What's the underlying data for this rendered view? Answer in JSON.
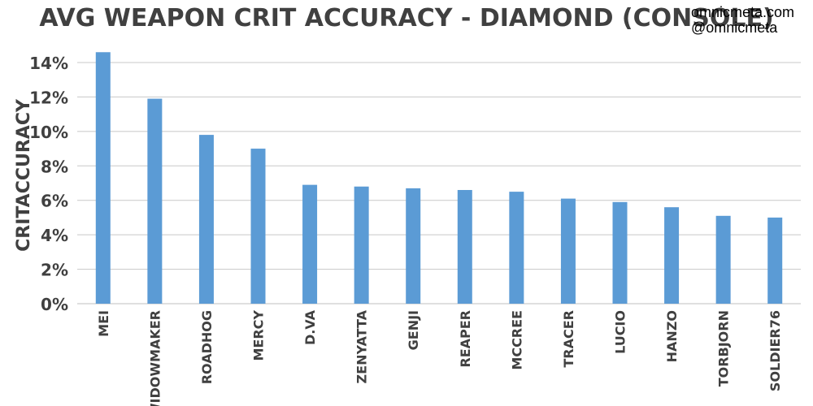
{
  "credits": {
    "site": "omnicmeta.com",
    "handle": "@omnicmeta"
  },
  "colors": {
    "bar": "#5b9bd5",
    "text": "#404040",
    "grid": "#c8c8c8"
  },
  "chart_data": {
    "type": "bar",
    "title": "AVG WEAPON CRIT ACCURACY - DIAMOND (CONSOLE)",
    "xlabel": "",
    "ylabel": "CRITACCURACY",
    "ylim": [
      0,
      14
    ],
    "yticks": [
      "0%",
      "2%",
      "4%",
      "6%",
      "8%",
      "10%",
      "12%",
      "14%"
    ],
    "grid": true,
    "legend": "none",
    "categories": [
      "MEI",
      "WIDOWMAKER",
      "ROADHOG",
      "MERCY",
      "D.VA",
      "ZENYATTA",
      "GENJI",
      "REAPER",
      "MCCREE",
      "TRACER",
      "LUCIO",
      "HANZO",
      "TORBJORN",
      "SOLDIER76"
    ],
    "values": [
      14.6,
      11.9,
      9.8,
      9.0,
      6.9,
      6.8,
      6.7,
      6.6,
      6.5,
      6.1,
      5.9,
      5.6,
      5.1,
      5.0
    ]
  }
}
